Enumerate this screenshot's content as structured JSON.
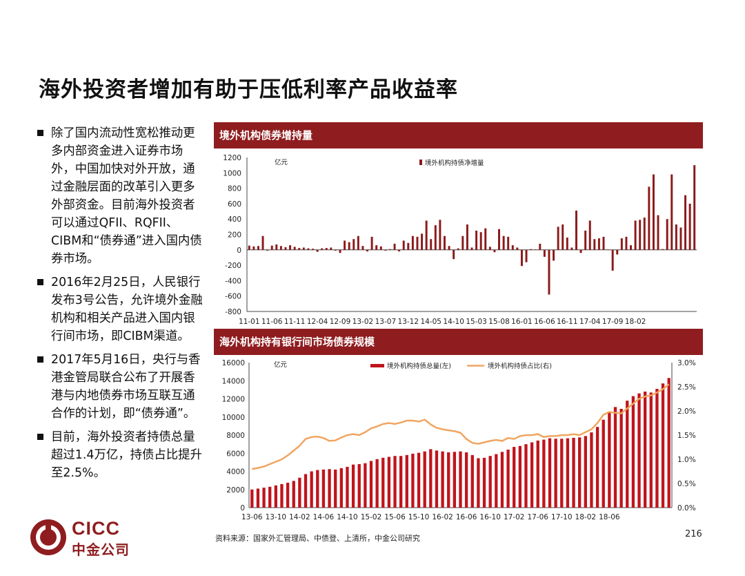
{
  "page": {
    "title": "海外投资者增加有助于压低利率产品收益率",
    "page_number": "216",
    "source": "资料来源：国家外汇管理局、中债登、上清所，中金公司研究"
  },
  "bullets": [
    "除了国内流动性宽松推动更多内部资金进入证券市场外，中国加快对外开放，通过金融层面的改革引入更多外部资金。目前海外投资者可以通过QFII、RQFII、CIBM和“债券通”进入国内债券市场。",
    "2016年2月25日，人民银行发布3号公告，允许境外金融机构和相关产品进入国内银行间市场，即CIBM渠道。",
    "2017年5月16日，央行与香港金管局联合公布了开展香港与内地债券市场互联互通合作的计划，即“债券通”。",
    "目前，海外投资者持债总量超过1.4万亿，持债占比提升至2.5%。"
  ],
  "logo": {
    "en": "CICC",
    "cn": "中金公司"
  },
  "colors": {
    "accent": "#8f1d1f",
    "bar": "#c0141c",
    "bar_dark": "#8b1a1a",
    "line": "#f0a560"
  },
  "chart_data": [
    {
      "type": "bar",
      "header": "境外机构债券增持量",
      "unit_label": "亿元",
      "legend": "境外机构持债净增量",
      "legend_position": "top-center",
      "ylim": [
        -800,
        1200
      ],
      "yticks": [
        "1200",
        "1000",
        "800",
        "600",
        "400",
        "200",
        "0",
        "-200",
        "-400",
        "-600",
        "-800"
      ],
      "xticks": [
        "11-01",
        "11-06",
        "11-11",
        "12-04",
        "12-09",
        "13-02",
        "13-07",
        "13-12",
        "14-05",
        "14-10",
        "15-03",
        "15-08",
        "16-01",
        "16-06",
        "16-11",
        "17-04",
        "17-09",
        "18-02"
      ],
      "start_month": "2011-01",
      "values": [
        55,
        45,
        50,
        180,
        -10,
        55,
        70,
        50,
        35,
        60,
        40,
        25,
        30,
        20,
        15,
        -25,
        20,
        25,
        30,
        -10,
        -40,
        120,
        100,
        140,
        180,
        50,
        -20,
        170,
        60,
        45,
        -10,
        10,
        80,
        -20,
        120,
        90,
        180,
        170,
        210,
        380,
        140,
        320,
        390,
        180,
        50,
        -120,
        20,
        180,
        330,
        30,
        250,
        230,
        280,
        40,
        -30,
        270,
        180,
        170,
        60,
        30,
        -210,
        -160,
        10,
        5,
        80,
        -90,
        -580,
        -140,
        300,
        330,
        160,
        30,
        510,
        -40,
        250,
        380,
        140,
        150,
        170,
        5,
        -270,
        -60,
        150,
        170,
        60,
        380,
        390,
        420,
        820,
        980,
        450,
        10,
        400,
        980,
        330,
        290,
        710,
        600,
        1100
      ]
    },
    {
      "type": "bar+line",
      "header": "海外机构持有银行间市场债券规模",
      "unit_label": "亿元",
      "legend": [
        "境外机构持债总量(左)",
        "境外机构持债占比(右)"
      ],
      "legend_position": "top-center",
      "ylim_left": [
        0,
        16000
      ],
      "ylim_right": [
        0,
        3.0
      ],
      "yticks_left": [
        "16000",
        "14000",
        "12000",
        "10000",
        "8000",
        "6000",
        "4000",
        "2000",
        "0"
      ],
      "yticks_right": [
        "3.0%",
        "2.5%",
        "2.0%",
        "1.5%",
        "1.0%",
        "0.5%",
        "0.0%"
      ],
      "xticks": [
        "13-06",
        "13-10",
        "14-02",
        "14-06",
        "14-10",
        "15-02",
        "15-06",
        "15-10",
        "16-02",
        "16-06",
        "16-10",
        "17-02",
        "17-06",
        "17-10",
        "18-02",
        "18-06"
      ],
      "start_month": "2013-06",
      "holdings": [
        2000,
        2100,
        2200,
        2300,
        2450,
        2600,
        2750,
        2950,
        3300,
        3700,
        4000,
        4150,
        4200,
        4250,
        4200,
        4350,
        4500,
        4750,
        4800,
        4900,
        5150,
        5350,
        5500,
        5600,
        5700,
        5700,
        5800,
        5950,
        6050,
        6200,
        6450,
        6300,
        6200,
        6100,
        6150,
        6200,
        6100,
        5800,
        5450,
        5500,
        5700,
        5900,
        6150,
        6400,
        6700,
        6800,
        7000,
        7200,
        7400,
        7500,
        7650,
        7600,
        7600,
        7650,
        7700,
        7750,
        7900,
        8300,
        8900,
        9700,
        10500,
        11100,
        10900,
        11800,
        12300,
        12600,
        12800,
        12700,
        13100,
        13700,
        14300
      ],
      "share_pct": [
        0.8,
        0.82,
        0.85,
        0.9,
        0.95,
        1.0,
        1.08,
        1.18,
        1.28,
        1.42,
        1.46,
        1.47,
        1.44,
        1.38,
        1.39,
        1.45,
        1.5,
        1.52,
        1.5,
        1.56,
        1.64,
        1.68,
        1.73,
        1.75,
        1.73,
        1.76,
        1.8,
        1.8,
        1.78,
        1.82,
        1.72,
        1.65,
        1.62,
        1.6,
        1.58,
        1.55,
        1.42,
        1.34,
        1.32,
        1.35,
        1.38,
        1.4,
        1.38,
        1.44,
        1.42,
        1.48,
        1.5,
        1.5,
        1.52,
        1.46,
        1.48,
        1.48,
        1.5,
        1.5,
        1.52,
        1.5,
        1.56,
        1.62,
        1.75,
        1.92,
        1.98,
        1.96,
        1.95,
        2.05,
        2.15,
        2.25,
        2.3,
        2.32,
        2.38,
        2.45,
        2.55
      ]
    }
  ]
}
